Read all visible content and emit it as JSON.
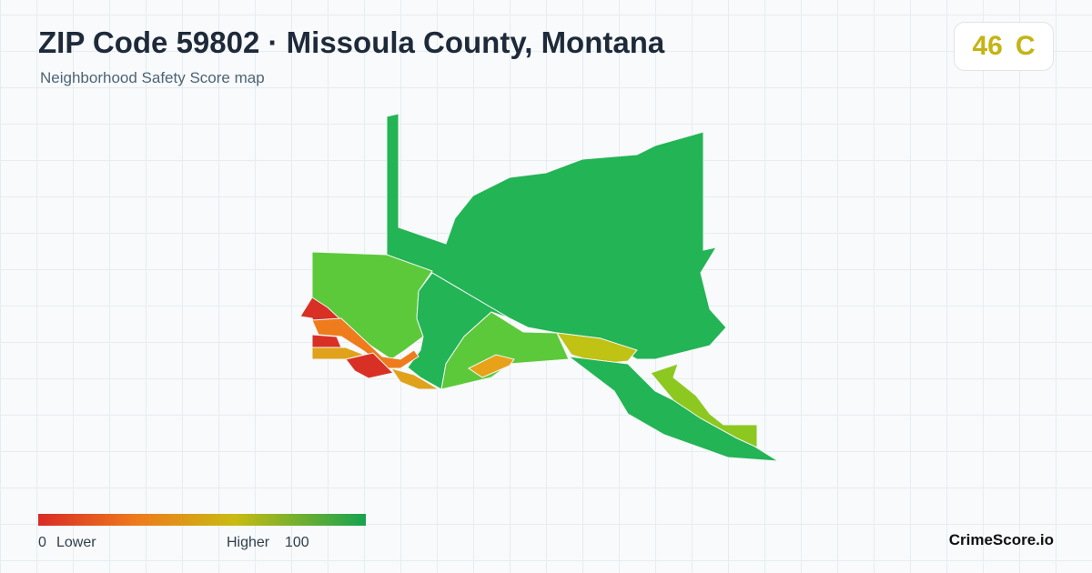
{
  "header": {
    "title": "ZIP Code 59802 · Missoula County, Montana",
    "subtitle": "Neighborhood Safety Score map"
  },
  "badge": {
    "score": 46,
    "grade": "C"
  },
  "legend": {
    "min": "0",
    "low_label": "Lower",
    "high_label": "Higher",
    "max": "100"
  },
  "brand": "CrimeScore.io"
}
